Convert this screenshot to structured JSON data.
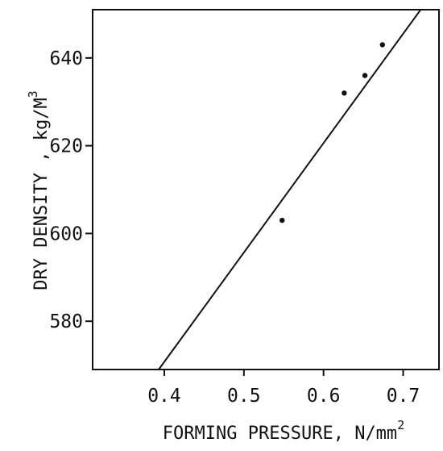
{
  "chart_data": {
    "type": "scatter",
    "title": "",
    "xlabel": "FORMING PRESSURE, N/mm",
    "xlabel_superscript": "2",
    "ylabel": "DRY  DENSITY , kg/M",
    "ylabel_superscript": "3",
    "xlim": [
      0.31,
      0.745
    ],
    "ylim": [
      569,
      651
    ],
    "x_ticks": [
      {
        "value": 0.4,
        "label": "0.4"
      },
      {
        "value": 0.5,
        "label": "0.5"
      },
      {
        "value": 0.6,
        "label": "0.6"
      },
      {
        "value": 0.7,
        "label": "0.7"
      }
    ],
    "y_ticks": [
      {
        "value": 580,
        "label": "580"
      },
      {
        "value": 600,
        "label": "600"
      },
      {
        "value": 620,
        "label": "620"
      },
      {
        "value": 640,
        "label": "640"
      }
    ],
    "grid": false,
    "series": [
      {
        "points": [
          {
            "x": 0.548,
            "y": 603
          },
          {
            "x": 0.626,
            "y": 632
          },
          {
            "x": 0.652,
            "y": 636
          },
          {
            "x": 0.674,
            "y": 643
          }
        ],
        "color": "#111111"
      }
    ],
    "fit_line": {
      "x": [
        0.393,
        0.722
      ],
      "y": [
        569,
        651
      ],
      "color": "#111111"
    }
  }
}
